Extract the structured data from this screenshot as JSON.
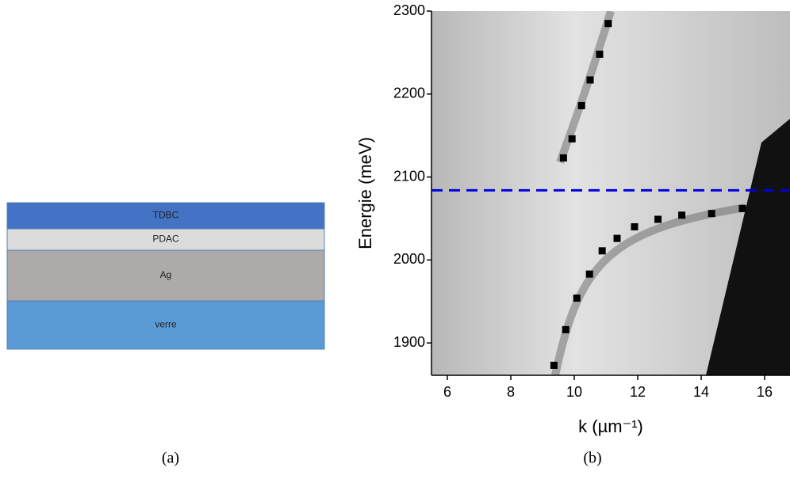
{
  "diagram": {
    "layers": [
      {
        "label": "TDBC",
        "color": "#4472c4"
      },
      {
        "label": "PDAC",
        "color": "#dcdcdc"
      },
      {
        "label": "Ag",
        "color": "#aeaaaa"
      },
      {
        "label": "verre",
        "color": "#5b9bd5"
      }
    ],
    "caption": "(a)"
  },
  "chart_data": {
    "type": "scatter",
    "caption": "(b)",
    "xlabel": "k (µm⁻¹)",
    "ylabel": "Energie (meV)",
    "xlim": [
      5.5,
      16.8
    ],
    "ylim": [
      1861,
      2300
    ],
    "xticks": [
      6,
      8,
      10,
      12,
      14,
      16
    ],
    "yticks": [
      1900,
      2000,
      2100,
      2200,
      2300
    ],
    "hline": {
      "value": 2084,
      "color": "#0000dd"
    },
    "series": [
      {
        "color": "#000000",
        "x": [
          9.36,
          9.73,
          10.08,
          10.48,
          10.88,
          11.35,
          11.9,
          12.64,
          13.39,
          14.33,
          15.3
        ],
        "values": [
          1873,
          1916,
          1954,
          1983,
          2011,
          2026,
          2040,
          2049,
          2054,
          2056,
          2062
        ]
      },
      {
        "color": "#000000",
        "x": [
          9.66,
          9.93,
          10.23,
          10.5,
          10.8,
          11.07
        ],
        "values": [
          2123,
          2146,
          2186,
          2217,
          2248,
          2285
        ]
      }
    ]
  }
}
